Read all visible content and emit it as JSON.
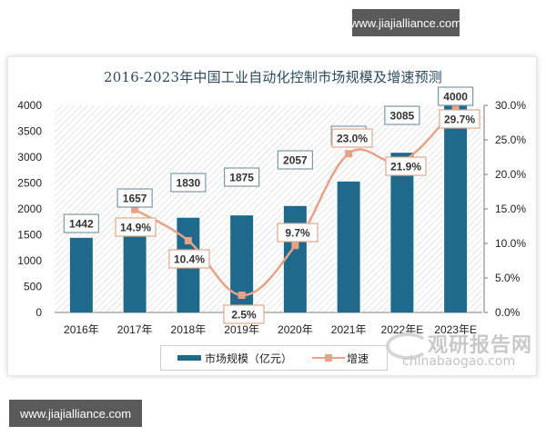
{
  "watermarks": {
    "top": "www.jiajialliance.com",
    "bottom": "www.jiajialliance.com"
  },
  "brand": {
    "name_cn": "观研报告网",
    "domain": "chinabaogao.com"
  },
  "colors": {
    "bar": "#1f6a8c",
    "line": "#e8a285",
    "label_border_bar": "#7a9aa8",
    "label_border_line": "#e0a88e"
  },
  "chart_data": {
    "type": "bar",
    "title": "2016-2023年中国工业自动化控制市场规模及增速预测",
    "categories": [
      "2016年",
      "2017年",
      "2018年",
      "2019年",
      "2020年",
      "2021年",
      "2022年E",
      "2023年E"
    ],
    "series": [
      {
        "name": "市场规模（亿元）",
        "type": "bar",
        "axis": "left",
        "values": [
          1442,
          1657,
          1830,
          1875,
          2057,
          2530,
          3085,
          4000
        ]
      },
      {
        "name": "增速",
        "type": "line",
        "axis": "right",
        "values": [
          null,
          14.9,
          10.4,
          2.5,
          9.7,
          23.0,
          21.9,
          29.7
        ]
      }
    ],
    "bar_labels": [
      "1442",
      "1657",
      "1830",
      "1875",
      "2057",
      "2530",
      "3085",
      "4000"
    ],
    "line_labels": [
      "",
      "14.9%",
      "10.4%",
      "2.5%",
      "9.7%",
      "23.0%",
      "21.9%",
      "29.7%"
    ],
    "xlabel": "",
    "ylabel": "",
    "ylim": [
      0,
      4000
    ],
    "y_ticks": [
      "4000",
      "3500",
      "3000",
      "2500",
      "2000",
      "1500",
      "1000",
      "500",
      "0"
    ],
    "y2lim": [
      0,
      30
    ],
    "y2_ticks": [
      "30.0%",
      "25.0%",
      "20.0%",
      "15.0%",
      "10.0%",
      "5.0%",
      "0.0%"
    ],
    "grid": false,
    "background": "diagonal hatch",
    "legend_position": "bottom"
  },
  "legend": {
    "bar_label": "市场规模（亿元）",
    "line_label": "增速"
  }
}
